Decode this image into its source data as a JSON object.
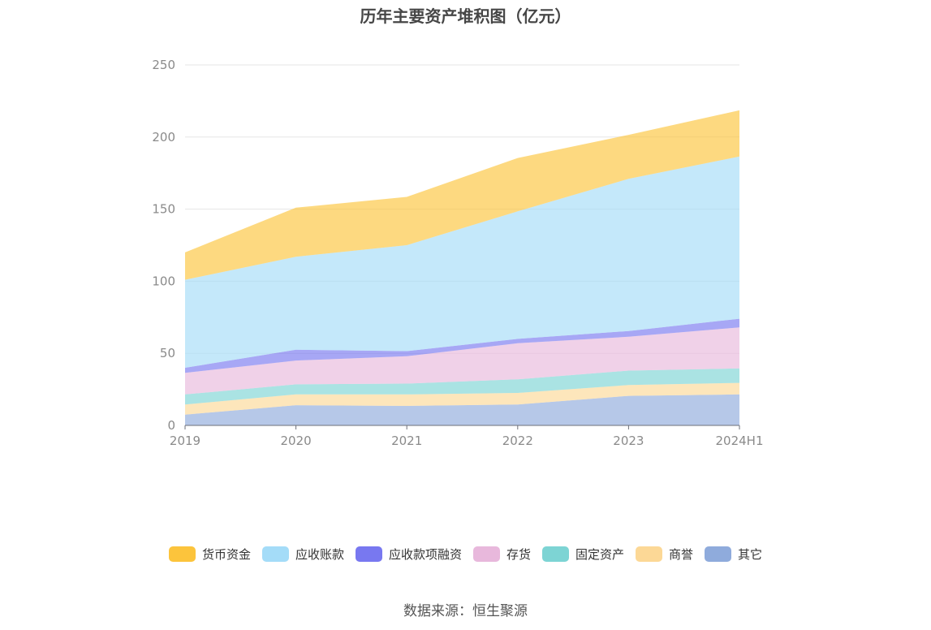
{
  "chart_data": {
    "type": "area",
    "stacked": true,
    "title": "历年主要资产堆积图（亿元）",
    "categories": [
      "2019",
      "2020",
      "2021",
      "2022",
      "2023",
      "2024H1"
    ],
    "ylim": [
      0,
      250
    ],
    "yticks": [
      0,
      50,
      100,
      150,
      200,
      250
    ],
    "grid": true,
    "legend_position": "bottom",
    "series": [
      {
        "name": "其它",
        "color": "#8fabdc",
        "values": [
          7.5,
          14,
          13.5,
          14.5,
          20.5,
          21.5
        ]
      },
      {
        "name": "商誉",
        "color": "#fcd896",
        "values": [
          7,
          7.5,
          8,
          8,
          7.5,
          8
        ]
      },
      {
        "name": "固定资产",
        "color": "#7dd4d4",
        "values": [
          7,
          7,
          7.5,
          9.5,
          10,
          10
        ]
      },
      {
        "name": "存货",
        "color": "#e8b8dc",
        "values": [
          15,
          16.5,
          19,
          25,
          23.5,
          28.5
        ]
      },
      {
        "name": "应收款项融资",
        "color": "#7878f0",
        "values": [
          3.5,
          7.5,
          3.5,
          3,
          4,
          6
        ]
      },
      {
        "name": "应收账款",
        "color": "#a4dcf8",
        "values": [
          61,
          64.5,
          73.5,
          88.5,
          105.5,
          112.5
        ]
      },
      {
        "name": "货币资金",
        "color": "#fcc43c",
        "values": [
          19,
          34,
          33.5,
          37,
          30.5,
          32
        ]
      }
    ]
  },
  "source_text": "数据来源：恒生聚源"
}
